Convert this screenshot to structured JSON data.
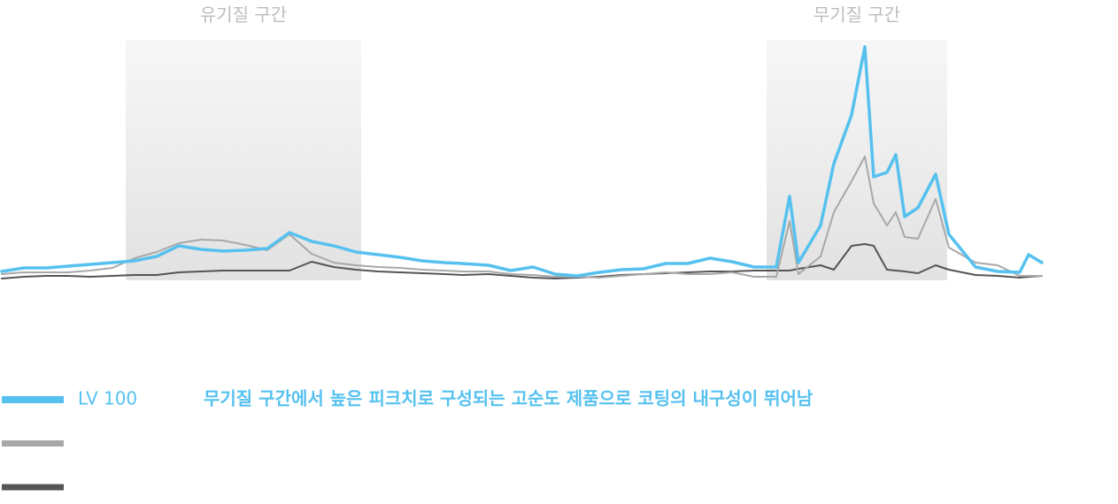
{
  "chart_data": {
    "type": "line",
    "x": [
      0,
      25,
      50,
      75,
      100,
      125,
      150,
      175,
      200,
      225,
      250,
      275,
      300,
      325,
      350,
      375,
      400,
      425,
      450,
      475,
      500,
      520,
      550,
      575,
      600,
      625,
      650,
      675,
      700,
      725,
      750,
      775,
      800,
      825,
      850,
      875,
      890,
      900,
      925,
      940,
      960,
      975,
      985,
      1000,
      1010,
      1020,
      1035,
      1055,
      1070,
      1100,
      1125,
      1150,
      1160,
      1175
    ],
    "xlim": [
      0,
      1175
    ],
    "ylim": [
      0,
      280
    ],
    "bands": [
      {
        "label": "유기질 구간",
        "x": [
          140,
          406
        ]
      },
      {
        "label": "무기질 구간",
        "x": [
          864,
          1068
        ]
      }
    ],
    "series": [
      {
        "name": "LV 100",
        "color": "#56c1ef",
        "values": [
          23,
          27,
          27,
          29,
          31,
          33,
          35,
          40,
          52,
          48,
          46,
          47,
          49,
          67,
          57,
          52,
          45,
          42,
          39,
          35,
          33,
          32,
          30,
          24,
          28,
          20,
          18,
          22,
          25,
          26,
          32,
          32,
          38,
          34,
          28,
          28,
          108,
          33,
          75,
          145,
          200,
          277,
          130,
          135,
          155,
          85,
          95,
          133,
          65,
          28,
          23,
          22,
          42,
          33
        ]
      },
      {
        "color": "#a8a8a8",
        "values": [
          20,
          22,
          22,
          22,
          24,
          27,
          38,
          45,
          55,
          59,
          58,
          53,
          47,
          65,
          43,
          33,
          30,
          28,
          27,
          25,
          24,
          23,
          23,
          20,
          19,
          17,
          17,
          16,
          18,
          20,
          22,
          20,
          20,
          22,
          17,
          17,
          80,
          20,
          40,
          90,
          125,
          153,
          100,
          75,
          90,
          62,
          60,
          105,
          50,
          33,
          30,
          18,
          18,
          18
        ]
      },
      {
        "color": "#555555",
        "values": [
          15,
          17,
          18,
          18,
          17,
          18,
          19,
          19,
          22,
          23,
          24,
          24,
          24,
          24,
          34,
          28,
          25,
          23,
          22,
          21,
          20,
          19,
          20,
          18,
          16,
          15,
          16,
          17,
          19,
          20,
          21,
          22,
          23,
          23,
          24,
          24,
          24,
          26,
          30,
          25,
          52,
          54,
          52,
          25,
          24,
          23,
          21,
          30,
          25,
          19,
          18,
          16,
          17,
          18
        ]
      }
    ],
    "annotation": "무기질 구간에서 높은 피크치로 구성되는 고순도 제품으로 코팅의 내구성이 뛰어남"
  }
}
